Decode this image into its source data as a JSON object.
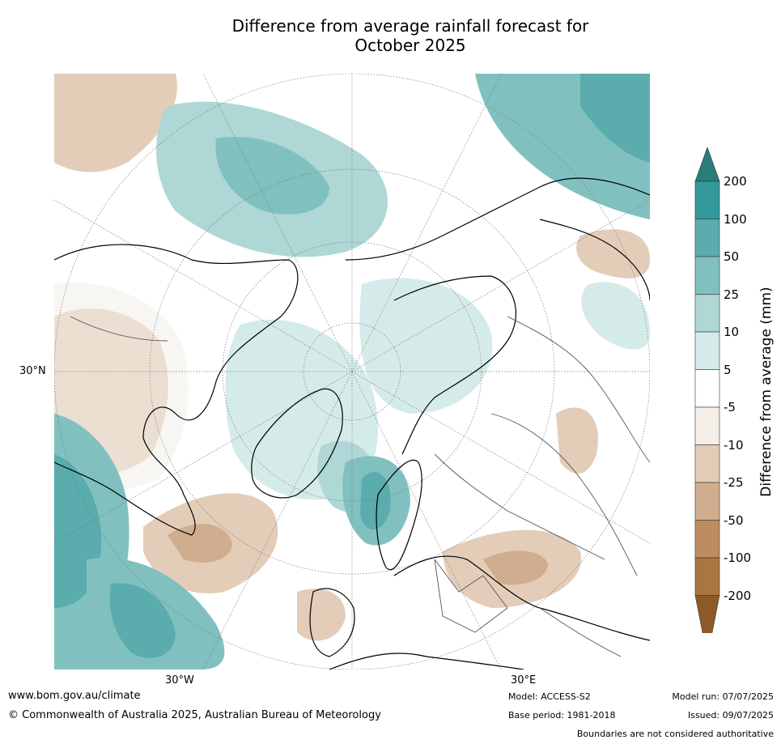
{
  "title_line1": "Difference from average rainfall forecast for",
  "title_line2": "October 2025",
  "axes": {
    "lat_label": "30°N",
    "lon_label_left": "30°W",
    "lon_label_right": "30°E"
  },
  "colorbar": {
    "title": "Difference from average (mm)",
    "levels": [
      "200",
      "100",
      "50",
      "25",
      "10",
      "5",
      "-5",
      "-10",
      "-25",
      "-50",
      "-100",
      "-200"
    ],
    "colors": [
      "#2a7d79",
      "#33999a",
      "#5aacad",
      "#80c1c0",
      "#aed7d6",
      "#d5ebea",
      "#ffffff",
      "#f3eee8",
      "#e3cdb9",
      "#cfad8e",
      "#bd8c61",
      "#a97542",
      "#8c5a28"
    ]
  },
  "footer": {
    "url": "www.bom.gov.au/climate",
    "copyright": "© Commonwealth of Australia 2025, Australian Bureau of Meteorology",
    "model": "Model: ACCESS-S2",
    "base_period": "Base period: 1981-2018",
    "model_run": "Model run: 07/07/2025",
    "issued": "Issued: 09/07/2025",
    "disclaimer": "Boundaries are not considered authoritative"
  }
}
